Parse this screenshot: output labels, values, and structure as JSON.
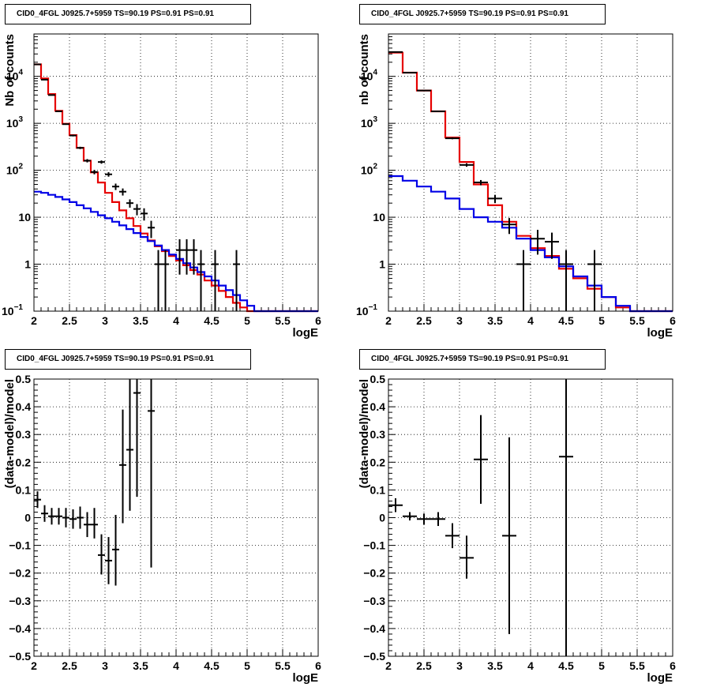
{
  "chart_data": [
    {
      "type": "scatter",
      "title": "CID0_4FGL J0925.7+5959 TS=90.19 PS=0.91 PS=0.91",
      "xlabel": "logE",
      "ylabel": "Nb of counts",
      "xlim": [
        2,
        6
      ],
      "ylim": [
        0.1,
        80000
      ],
      "log_y": true,
      "grid": true,
      "x_ticks": [
        "2",
        "2.5",
        "3",
        "3.5",
        "4",
        "4.5",
        "5",
        "5.5",
        "6"
      ],
      "y_ticks": [
        {
          "v": 0.1,
          "base": "10",
          "exp": "−1"
        },
        {
          "v": 1,
          "label": "1"
        },
        {
          "v": 10,
          "label": "10"
        },
        {
          "v": 100,
          "base": "10",
          "exp": "2"
        },
        {
          "v": 1000,
          "base": "10",
          "exp": "3"
        },
        {
          "v": 10000,
          "base": "10",
          "exp": "4"
        }
      ],
      "edges": [
        2.0,
        2.1,
        2.2,
        2.3,
        2.4,
        2.5,
        2.6,
        2.7,
        2.8,
        2.9,
        3.0,
        3.1,
        3.2,
        3.3,
        3.4,
        3.5,
        3.6,
        3.7,
        3.8,
        3.9,
        4.0,
        4.1,
        4.2,
        4.3,
        4.4,
        4.5,
        4.6,
        4.7,
        4.8,
        4.9,
        5.0,
        5.1,
        5.2,
        5.3,
        5.4,
        5.5,
        5.6,
        5.7,
        5.8,
        5.9,
        6.0
      ],
      "series": [
        {
          "color": "#e60000",
          "style": "step",
          "values": [
            18000,
            9000,
            4200,
            1850,
            980,
            560,
            300,
            160,
            90,
            55,
            33,
            21,
            14,
            9.5,
            6.5,
            4.5,
            3.2,
            2.4,
            1.9,
            1.5,
            1.2,
            0.95,
            0.75,
            0.6,
            0.45,
            0.35,
            0.27,
            0.2,
            0.15,
            0.12,
            0.1,
            0.1,
            0.1,
            0.1,
            0.1,
            0.1,
            0.1,
            0.1,
            0.1,
            0.1
          ]
        },
        {
          "color": "#0000e6",
          "style": "step",
          "values": [
            35,
            33,
            30,
            27,
            24,
            21,
            18,
            15.5,
            13,
            11,
            9.5,
            8,
            6.7,
            5.6,
            4.6,
            3.8,
            3.1,
            2.5,
            2,
            1.6,
            1.3,
            1.05,
            0.85,
            0.68,
            0.55,
            0.45,
            0.35,
            0.28,
            0.22,
            0.17,
            0.13,
            0.1,
            0.1,
            0.1,
            0.1,
            0.1,
            0.1,
            0.1,
            0.1,
            0.1
          ]
        },
        {
          "color": "#000000",
          "style": "errorbar",
          "points": [
            {
              "x": 2.05,
              "y": 18000,
              "lo": 17800,
              "hi": 18200
            },
            {
              "x": 2.15,
              "y": 8500,
              "lo": 8400,
              "hi": 8600
            },
            {
              "x": 2.25,
              "y": 4000,
              "lo": 3900,
              "hi": 4100
            },
            {
              "x": 2.35,
              "y": 1800,
              "lo": 1760,
              "hi": 1840
            },
            {
              "x": 2.45,
              "y": 960,
              "lo": 930,
              "hi": 990
            },
            {
              "x": 2.55,
              "y": 550,
              "lo": 527,
              "hi": 573
            },
            {
              "x": 2.65,
              "y": 300,
              "lo": 283,
              "hi": 317
            },
            {
              "x": 2.75,
              "y": 160,
              "lo": 147,
              "hi": 173
            },
            {
              "x": 2.85,
              "y": 92,
              "lo": 82,
              "hi": 102
            },
            {
              "x": 2.95,
              "y": 150,
              "lo": 138,
              "hi": 162
            },
            {
              "x": 3.05,
              "y": 82,
              "lo": 73,
              "hi": 91
            },
            {
              "x": 3.15,
              "y": 45,
              "lo": 38,
              "hi": 52
            },
            {
              "x": 3.25,
              "y": 35,
              "lo": 29,
              "hi": 41
            },
            {
              "x": 3.35,
              "y": 20,
              "lo": 16,
              "hi": 24
            },
            {
              "x": 3.45,
              "y": 15,
              "lo": 11,
              "hi": 19
            },
            {
              "x": 3.55,
              "y": 12,
              "lo": 8.5,
              "hi": 15.5
            },
            {
              "x": 3.65,
              "y": 6,
              "lo": 3.6,
              "hi": 8.4
            },
            {
              "x": 3.75,
              "y": 1,
              "lo": 0.1,
              "hi": 2
            },
            {
              "x": 3.85,
              "y": 1,
              "lo": 0.1,
              "hi": 2
            },
            {
              "x": 4.05,
              "y": 2,
              "lo": 0.6,
              "hi": 3.4
            },
            {
              "x": 4.15,
              "y": 2,
              "lo": 0.6,
              "hi": 3.4
            },
            {
              "x": 4.25,
              "y": 2,
              "lo": 0.6,
              "hi": 3.4
            },
            {
              "x": 4.35,
              "y": 1,
              "lo": 0.1,
              "hi": 2
            },
            {
              "x": 4.55,
              "y": 1,
              "lo": 0.1,
              "hi": 2
            },
            {
              "x": 4.85,
              "y": 1,
              "lo": 0.1,
              "hi": 2
            }
          ]
        }
      ]
    },
    {
      "type": "scatter",
      "title": "CID0_4FGL J0925.7+5959 TS=90.19 PS=0.91 PS=0.91",
      "xlabel": "logE",
      "ylabel": "nb of counts",
      "xlim": [
        2,
        6
      ],
      "ylim": [
        0.1,
        80000
      ],
      "log_y": true,
      "grid": true,
      "x_ticks": [
        "2",
        "2.5",
        "3",
        "3.5",
        "4",
        "4.5",
        "5",
        "5.5",
        "6"
      ],
      "y_ticks": [
        {
          "v": 0.1,
          "base": "10",
          "exp": "−1"
        },
        {
          "v": 1,
          "label": "1"
        },
        {
          "v": 10,
          "label": "10"
        },
        {
          "v": 100,
          "base": "10",
          "exp": "2"
        },
        {
          "v": 1000,
          "base": "10",
          "exp": "3"
        },
        {
          "v": 10000,
          "base": "10",
          "exp": "4"
        }
      ],
      "edges": [
        2.0,
        2.2,
        2.4,
        2.6,
        2.8,
        3.0,
        3.2,
        3.4,
        3.6,
        3.8,
        4.0,
        4.2,
        4.4,
        4.6,
        4.8,
        5.0,
        5.2,
        5.4,
        5.6,
        5.8,
        6.0
      ],
      "series": [
        {
          "color": "#e60000",
          "style": "step",
          "values": [
            32000,
            12000,
            5000,
            1800,
            500,
            150,
            50,
            18,
            8,
            4,
            2.2,
            1.5,
            0.8,
            0.5,
            0.3,
            0.2,
            0.12,
            0.1,
            0.1,
            0.1
          ]
        },
        {
          "color": "#0000e6",
          "style": "step",
          "values": [
            75,
            60,
            45,
            35,
            25,
            15,
            10,
            8,
            6,
            3.5,
            2,
            1.4,
            0.9,
            0.55,
            0.35,
            0.2,
            0.13,
            0.1,
            0.1,
            0.1
          ]
        },
        {
          "color": "#000000",
          "style": "errorbar",
          "points": [
            {
              "x": 2.1,
              "y": 33000,
              "lo": 32800,
              "hi": 33200
            },
            {
              "x": 2.3,
              "y": 12000,
              "lo": 11900,
              "hi": 12100
            },
            {
              "x": 2.5,
              "y": 5000,
              "lo": 4930,
              "hi": 5070
            },
            {
              "x": 2.7,
              "y": 1800,
              "lo": 1760,
              "hi": 1840
            },
            {
              "x": 2.9,
              "y": 480,
              "lo": 458,
              "hi": 502
            },
            {
              "x": 3.1,
              "y": 130,
              "lo": 119,
              "hi": 141
            },
            {
              "x": 3.3,
              "y": 55,
              "lo": 48,
              "hi": 62
            },
            {
              "x": 3.5,
              "y": 25,
              "lo": 20,
              "hi": 30
            },
            {
              "x": 3.7,
              "y": 7,
              "lo": 4.4,
              "hi": 9.6
            },
            {
              "x": 3.9,
              "y": 1,
              "lo": 0.1,
              "hi": 2
            },
            {
              "x": 4.1,
              "y": 3.5,
              "lo": 1.6,
              "hi": 5.4
            },
            {
              "x": 4.3,
              "y": 3,
              "lo": 1.3,
              "hi": 4.7
            },
            {
              "x": 4.5,
              "y": 1,
              "lo": 0.1,
              "hi": 2
            },
            {
              "x": 4.9,
              "y": 1,
              "lo": 0.1,
              "hi": 2
            }
          ]
        }
      ]
    },
    {
      "type": "scatter",
      "title": "CID0_4FGL J0925.7+5959 TS=90.19 PS=0.91 PS=0.91",
      "xlabel": "logE",
      "ylabel": "(data-model)/model",
      "xlim": [
        2,
        6
      ],
      "ylim": [
        -0.5,
        0.5
      ],
      "log_y": false,
      "grid": true,
      "x_ticks": [
        "2",
        "2.5",
        "3",
        "3.5",
        "4",
        "4.5",
        "5",
        "5.5",
        "6"
      ],
      "y_ticks": [
        {
          "v": -0.5,
          "label": "−0.5"
        },
        {
          "v": -0.4,
          "label": "−0.4"
        },
        {
          "v": -0.3,
          "label": "−0.3"
        },
        {
          "v": -0.2,
          "label": "−0.2"
        },
        {
          "v": -0.1,
          "label": "−0.1"
        },
        {
          "v": 0,
          "label": "0"
        },
        {
          "v": 0.1,
          "label": "0.1"
        },
        {
          "v": 0.2,
          "label": "0.2"
        },
        {
          "v": 0.3,
          "label": "0.3"
        },
        {
          "v": 0.4,
          "label": "0.4"
        },
        {
          "v": 0.5,
          "label": "0.5"
        }
      ],
      "series": [
        {
          "color": "#000000",
          "style": "errorbar",
          "points": [
            {
              "x": 2.05,
              "y": 0.065,
              "lo": 0.035,
              "hi": 0.095,
              "xerr": 0.05
            },
            {
              "x": 2.15,
              "y": 0.015,
              "lo": -0.015,
              "hi": 0.045,
              "xerr": 0.05
            },
            {
              "x": 2.25,
              "y": 0.005,
              "lo": -0.025,
              "hi": 0.035,
              "xerr": 0.05
            },
            {
              "x": 2.35,
              "y": 0.005,
              "lo": -0.025,
              "hi": 0.035,
              "xerr": 0.05
            },
            {
              "x": 2.45,
              "y": 0.0,
              "lo": -0.035,
              "hi": 0.035,
              "xerr": 0.05
            },
            {
              "x": 2.55,
              "y": -0.005,
              "lo": -0.04,
              "hi": 0.03,
              "xerr": 0.05
            },
            {
              "x": 2.65,
              "y": 0.0,
              "lo": -0.04,
              "hi": 0.04,
              "xerr": 0.05
            },
            {
              "x": 2.75,
              "y": -0.025,
              "lo": -0.07,
              "hi": 0.02,
              "xerr": 0.05
            },
            {
              "x": 2.85,
              "y": -0.025,
              "lo": -0.075,
              "hi": 0.035,
              "xerr": 0.05
            },
            {
              "x": 2.95,
              "y": -0.135,
              "lo": -0.205,
              "hi": -0.06,
              "xerr": 0.05
            },
            {
              "x": 3.05,
              "y": -0.155,
              "lo": -0.24,
              "hi": -0.07,
              "xerr": 0.05
            },
            {
              "x": 3.15,
              "y": -0.115,
              "lo": -0.245,
              "hi": 0.01,
              "xerr": 0.05
            },
            {
              "x": 3.25,
              "y": 0.19,
              "lo": -0.02,
              "hi": 0.39,
              "xerr": 0.05
            },
            {
              "x": 3.35,
              "y": 0.245,
              "lo": 0.025,
              "hi": 0.5,
              "xerr": 0.05
            },
            {
              "x": 3.45,
              "y": 0.45,
              "lo": 0.075,
              "hi": 0.5,
              "xerr": 0.05
            },
            {
              "x": 3.65,
              "y": 0.385,
              "lo": -0.18,
              "hi": 0.5,
              "xerr": 0.05
            }
          ]
        }
      ]
    },
    {
      "type": "scatter",
      "title": "CID0_4FGL J0925.7+5959 TS=90.19 PS=0.91 PS=0.91",
      "xlabel": "logE",
      "ylabel": "(data-model)/model",
      "xlim": [
        2,
        6
      ],
      "ylim": [
        -0.5,
        0.5
      ],
      "log_y": false,
      "grid": true,
      "x_ticks": [
        "2",
        "2.5",
        "3",
        "3.5",
        "4",
        "4.5",
        "5",
        "5.5",
        "6"
      ],
      "y_ticks": [
        {
          "v": -0.5,
          "label": "−0.5"
        },
        {
          "v": -0.4,
          "label": "−0.4"
        },
        {
          "v": -0.3,
          "label": "−0.3"
        },
        {
          "v": -0.2,
          "label": "−0.2"
        },
        {
          "v": -0.1,
          "label": "−0.1"
        },
        {
          "v": 0,
          "label": "0"
        },
        {
          "v": 0.1,
          "label": "0.1"
        },
        {
          "v": 0.2,
          "label": "0.2"
        },
        {
          "v": 0.3,
          "label": "0.3"
        },
        {
          "v": 0.4,
          "label": "0.4"
        },
        {
          "v": 0.5,
          "label": "0.5"
        }
      ],
      "series": [
        {
          "color": "#000000",
          "style": "errorbar",
          "points": [
            {
              "x": 2.1,
              "y": 0.045,
              "lo": 0.02,
              "hi": 0.07,
              "xerr": 0.1
            },
            {
              "x": 2.3,
              "y": 0.005,
              "lo": -0.01,
              "hi": 0.02,
              "xerr": 0.1
            },
            {
              "x": 2.5,
              "y": -0.005,
              "lo": -0.025,
              "hi": 0.015,
              "xerr": 0.1
            },
            {
              "x": 2.7,
              "y": -0.005,
              "lo": -0.03,
              "hi": 0.02,
              "xerr": 0.1
            },
            {
              "x": 2.9,
              "y": -0.065,
              "lo": -0.11,
              "hi": -0.02,
              "xerr": 0.1
            },
            {
              "x": 3.1,
              "y": -0.145,
              "lo": -0.22,
              "hi": -0.065,
              "xerr": 0.1
            },
            {
              "x": 3.3,
              "y": 0.21,
              "lo": 0.05,
              "hi": 0.37,
              "xerr": 0.1
            },
            {
              "x": 3.7,
              "y": -0.065,
              "lo": -0.42,
              "hi": 0.29,
              "xerr": 0.1
            },
            {
              "x": 4.5,
              "y": 0.22,
              "lo": -0.5,
              "hi": 0.5,
              "xerr": 0.1
            }
          ]
        }
      ]
    }
  ]
}
